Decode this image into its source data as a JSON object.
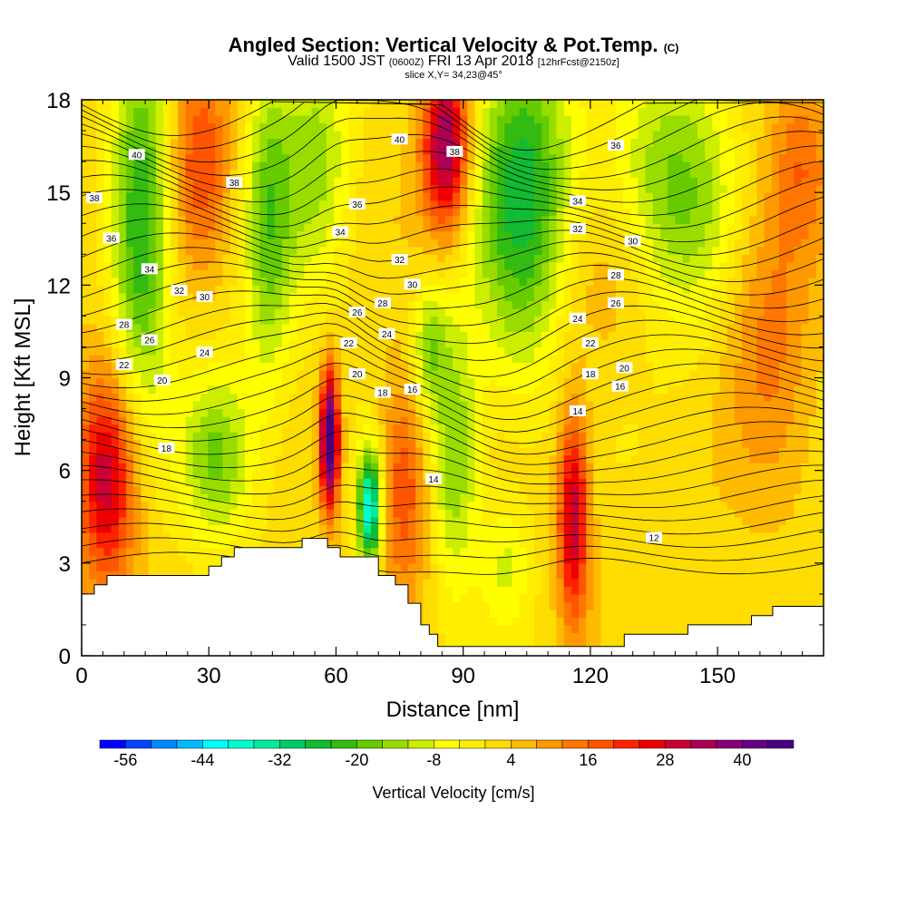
{
  "title": {
    "main": "Angled Section: Vertical Velocity & Pot.Temp.",
    "unit_tag": "(C)",
    "valid_prefix": "Valid 1500 JST",
    "valid_zulu": "(0600Z)",
    "valid_date": "FRI 13 Apr 2018",
    "forecast": "[12hrFcst@2150z]",
    "slice": "slice X,Y= 34,23@45°"
  },
  "chart_data": {
    "type": "heatmap",
    "xlabel": "Distance [nm]",
    "ylabel": "Height [Kft MSL]",
    "xlim": [
      0,
      175
    ],
    "ylim": [
      0,
      18
    ],
    "x_ticks": [
      0,
      30,
      60,
      90,
      120,
      150
    ],
    "y_ticks": [
      0,
      3,
      6,
      9,
      12,
      15,
      18
    ],
    "colorbar": {
      "label": "Vertical Velocity [cm/s]",
      "min": -60,
      "max": 48,
      "step": 4,
      "tick_labels": [
        -56,
        -44,
        -32,
        -20,
        -8,
        4,
        16,
        28,
        40
      ],
      "colors": [
        "#0000ff",
        "#0044ff",
        "#0088ff",
        "#00bbff",
        "#00ffff",
        "#00ffcc",
        "#00ee99",
        "#00cc66",
        "#11bb33",
        "#33bb11",
        "#66cc00",
        "#99dd00",
        "#ccee00",
        "#ffff00",
        "#ffee00",
        "#ffdd00",
        "#ffbb00",
        "#ff9900",
        "#ff7700",
        "#ff5500",
        "#ff2200",
        "#ee0000",
        "#cc0033",
        "#aa0055",
        "#880077",
        "#660088",
        "#4b0082"
      ]
    },
    "velocity_field": [
      {
        "x": 6,
        "z": 5.8,
        "sx": 5,
        "sz": 2.5,
        "w": 30
      },
      {
        "x": 14,
        "z": 14,
        "sx": 5,
        "sz": 4,
        "w": -28
      },
      {
        "x": 28,
        "z": 16,
        "sx": 5,
        "sz": 2.5,
        "w": 18
      },
      {
        "x": 32,
        "z": 6.5,
        "sx": 6,
        "sz": 2,
        "w": -20
      },
      {
        "x": 44,
        "z": 14,
        "sx": 4,
        "sz": 4,
        "w": -18
      },
      {
        "x": 58.5,
        "z": 7,
        "sx": 1.6,
        "sz": 1.6,
        "w": 48
      },
      {
        "x": 68,
        "z": 4.8,
        "sx": 2,
        "sz": 1.3,
        "w": -44
      },
      {
        "x": 55,
        "z": 16,
        "sx": 6,
        "sz": 3,
        "w": -16
      },
      {
        "x": 76,
        "z": 5.5,
        "sx": 4,
        "sz": 2.5,
        "w": 18
      },
      {
        "x": 86,
        "z": 16.5,
        "sx": 4,
        "sz": 2,
        "w": 36
      },
      {
        "x": 88,
        "z": 6.5,
        "sx": 4,
        "sz": 3,
        "w": -18
      },
      {
        "x": 82,
        "z": 10,
        "sx": 3,
        "sz": 1.5,
        "w": -16
      },
      {
        "x": 100,
        "z": 3,
        "sx": 4,
        "sz": 1.5,
        "w": -10
      },
      {
        "x": 104,
        "z": 15,
        "sx": 8,
        "sz": 4,
        "w": -28
      },
      {
        "x": 116,
        "z": 4.5,
        "sx": 2.6,
        "sz": 2.5,
        "w": 30
      },
      {
        "x": 124,
        "z": 12,
        "sx": 10,
        "sz": 2,
        "w": 6
      },
      {
        "x": 140,
        "z": 15,
        "sx": 10,
        "sz": 3,
        "w": -20
      },
      {
        "x": 162,
        "z": 11,
        "sx": 7,
        "sz": 3.5,
        "w": 12
      },
      {
        "x": 170,
        "z": 16,
        "sx": 5,
        "sz": 2,
        "w": 12
      }
    ],
    "terrain": [
      [
        0,
        2
      ],
      [
        3,
        2
      ],
      [
        3,
        2.3
      ],
      [
        6,
        2.3
      ],
      [
        6,
        2.6
      ],
      [
        30,
        2.6
      ],
      [
        30,
        2.9
      ],
      [
        33,
        2.9
      ],
      [
        33,
        3.2
      ],
      [
        36,
        3.2
      ],
      [
        36,
        3.5
      ],
      [
        52,
        3.5
      ],
      [
        52,
        3.8
      ],
      [
        58,
        3.8
      ],
      [
        58,
        3.5
      ],
      [
        61,
        3.5
      ],
      [
        61,
        3.2
      ],
      [
        70,
        3.2
      ],
      [
        70,
        2.6
      ],
      [
        74,
        2.6
      ],
      [
        74,
        2.3
      ],
      [
        77,
        2.3
      ],
      [
        77,
        1.7
      ],
      [
        80,
        1.7
      ],
      [
        80,
        1
      ],
      [
        82,
        1
      ],
      [
        82,
        0.7
      ],
      [
        84,
        0.7
      ],
      [
        84,
        0.3
      ],
      [
        128,
        0.3
      ],
      [
        128,
        0.7
      ],
      [
        143,
        0.7
      ],
      [
        143,
        1
      ],
      [
        158,
        1
      ],
      [
        158,
        1.3
      ],
      [
        163,
        1.3
      ],
      [
        163,
        1.6
      ],
      [
        175,
        1.6
      ]
    ],
    "contour_labels": [
      {
        "text": "40",
        "x": 13,
        "z": 16.2
      },
      {
        "text": "38",
        "x": 3,
        "z": 14.8
      },
      {
        "text": "36",
        "x": 7,
        "z": 13.5
      },
      {
        "text": "34",
        "x": 16,
        "z": 12.5
      },
      {
        "text": "32",
        "x": 23,
        "z": 11.8
      },
      {
        "text": "30",
        "x": 29,
        "z": 11.6
      },
      {
        "text": "28",
        "x": 10,
        "z": 10.7
      },
      {
        "text": "26",
        "x": 16,
        "z": 10.2
      },
      {
        "text": "24",
        "x": 29,
        "z": 9.8
      },
      {
        "text": "22",
        "x": 10,
        "z": 9.4
      },
      {
        "text": "20",
        "x": 19,
        "z": 8.9
      },
      {
        "text": "18",
        "x": 20,
        "z": 6.7
      },
      {
        "text": "38",
        "x": 36,
        "z": 15.3
      },
      {
        "text": "36",
        "x": 65,
        "z": 14.6
      },
      {
        "text": "34",
        "x": 61,
        "z": 13.7
      },
      {
        "text": "32",
        "x": 75,
        "z": 12.8
      },
      {
        "text": "30",
        "x": 78,
        "z": 12
      },
      {
        "text": "28",
        "x": 71,
        "z": 11.4
      },
      {
        "text": "26",
        "x": 65,
        "z": 11.1
      },
      {
        "text": "24",
        "x": 72,
        "z": 10.4
      },
      {
        "text": "22",
        "x": 63,
        "z": 10.1
      },
      {
        "text": "20",
        "x": 65,
        "z": 9.1
      },
      {
        "text": "18",
        "x": 71,
        "z": 8.5
      },
      {
        "text": "16",
        "x": 78,
        "z": 8.6
      },
      {
        "text": "14",
        "x": 83,
        "z": 5.7
      },
      {
        "text": "40",
        "x": 75,
        "z": 16.7
      },
      {
        "text": "38",
        "x": 88,
        "z": 16.3
      },
      {
        "text": "36",
        "x": 126,
        "z": 16.5
      },
      {
        "text": "34",
        "x": 117,
        "z": 14.7
      },
      {
        "text": "32",
        "x": 117,
        "z": 13.8
      },
      {
        "text": "30",
        "x": 130,
        "z": 13.4
      },
      {
        "text": "28",
        "x": 126,
        "z": 12.3
      },
      {
        "text": "26",
        "x": 126,
        "z": 11.4
      },
      {
        "text": "24",
        "x": 117,
        "z": 10.9
      },
      {
        "text": "22",
        "x": 120,
        "z": 10.1
      },
      {
        "text": "20",
        "x": 128,
        "z": 9.3
      },
      {
        "text": "18",
        "x": 120,
        "z": 9.1
      },
      {
        "text": "16",
        "x": 127,
        "z": 8.7
      },
      {
        "text": "14",
        "x": 117,
        "z": 7.9
      },
      {
        "text": "12",
        "x": 135,
        "z": 3.8
      }
    ]
  }
}
